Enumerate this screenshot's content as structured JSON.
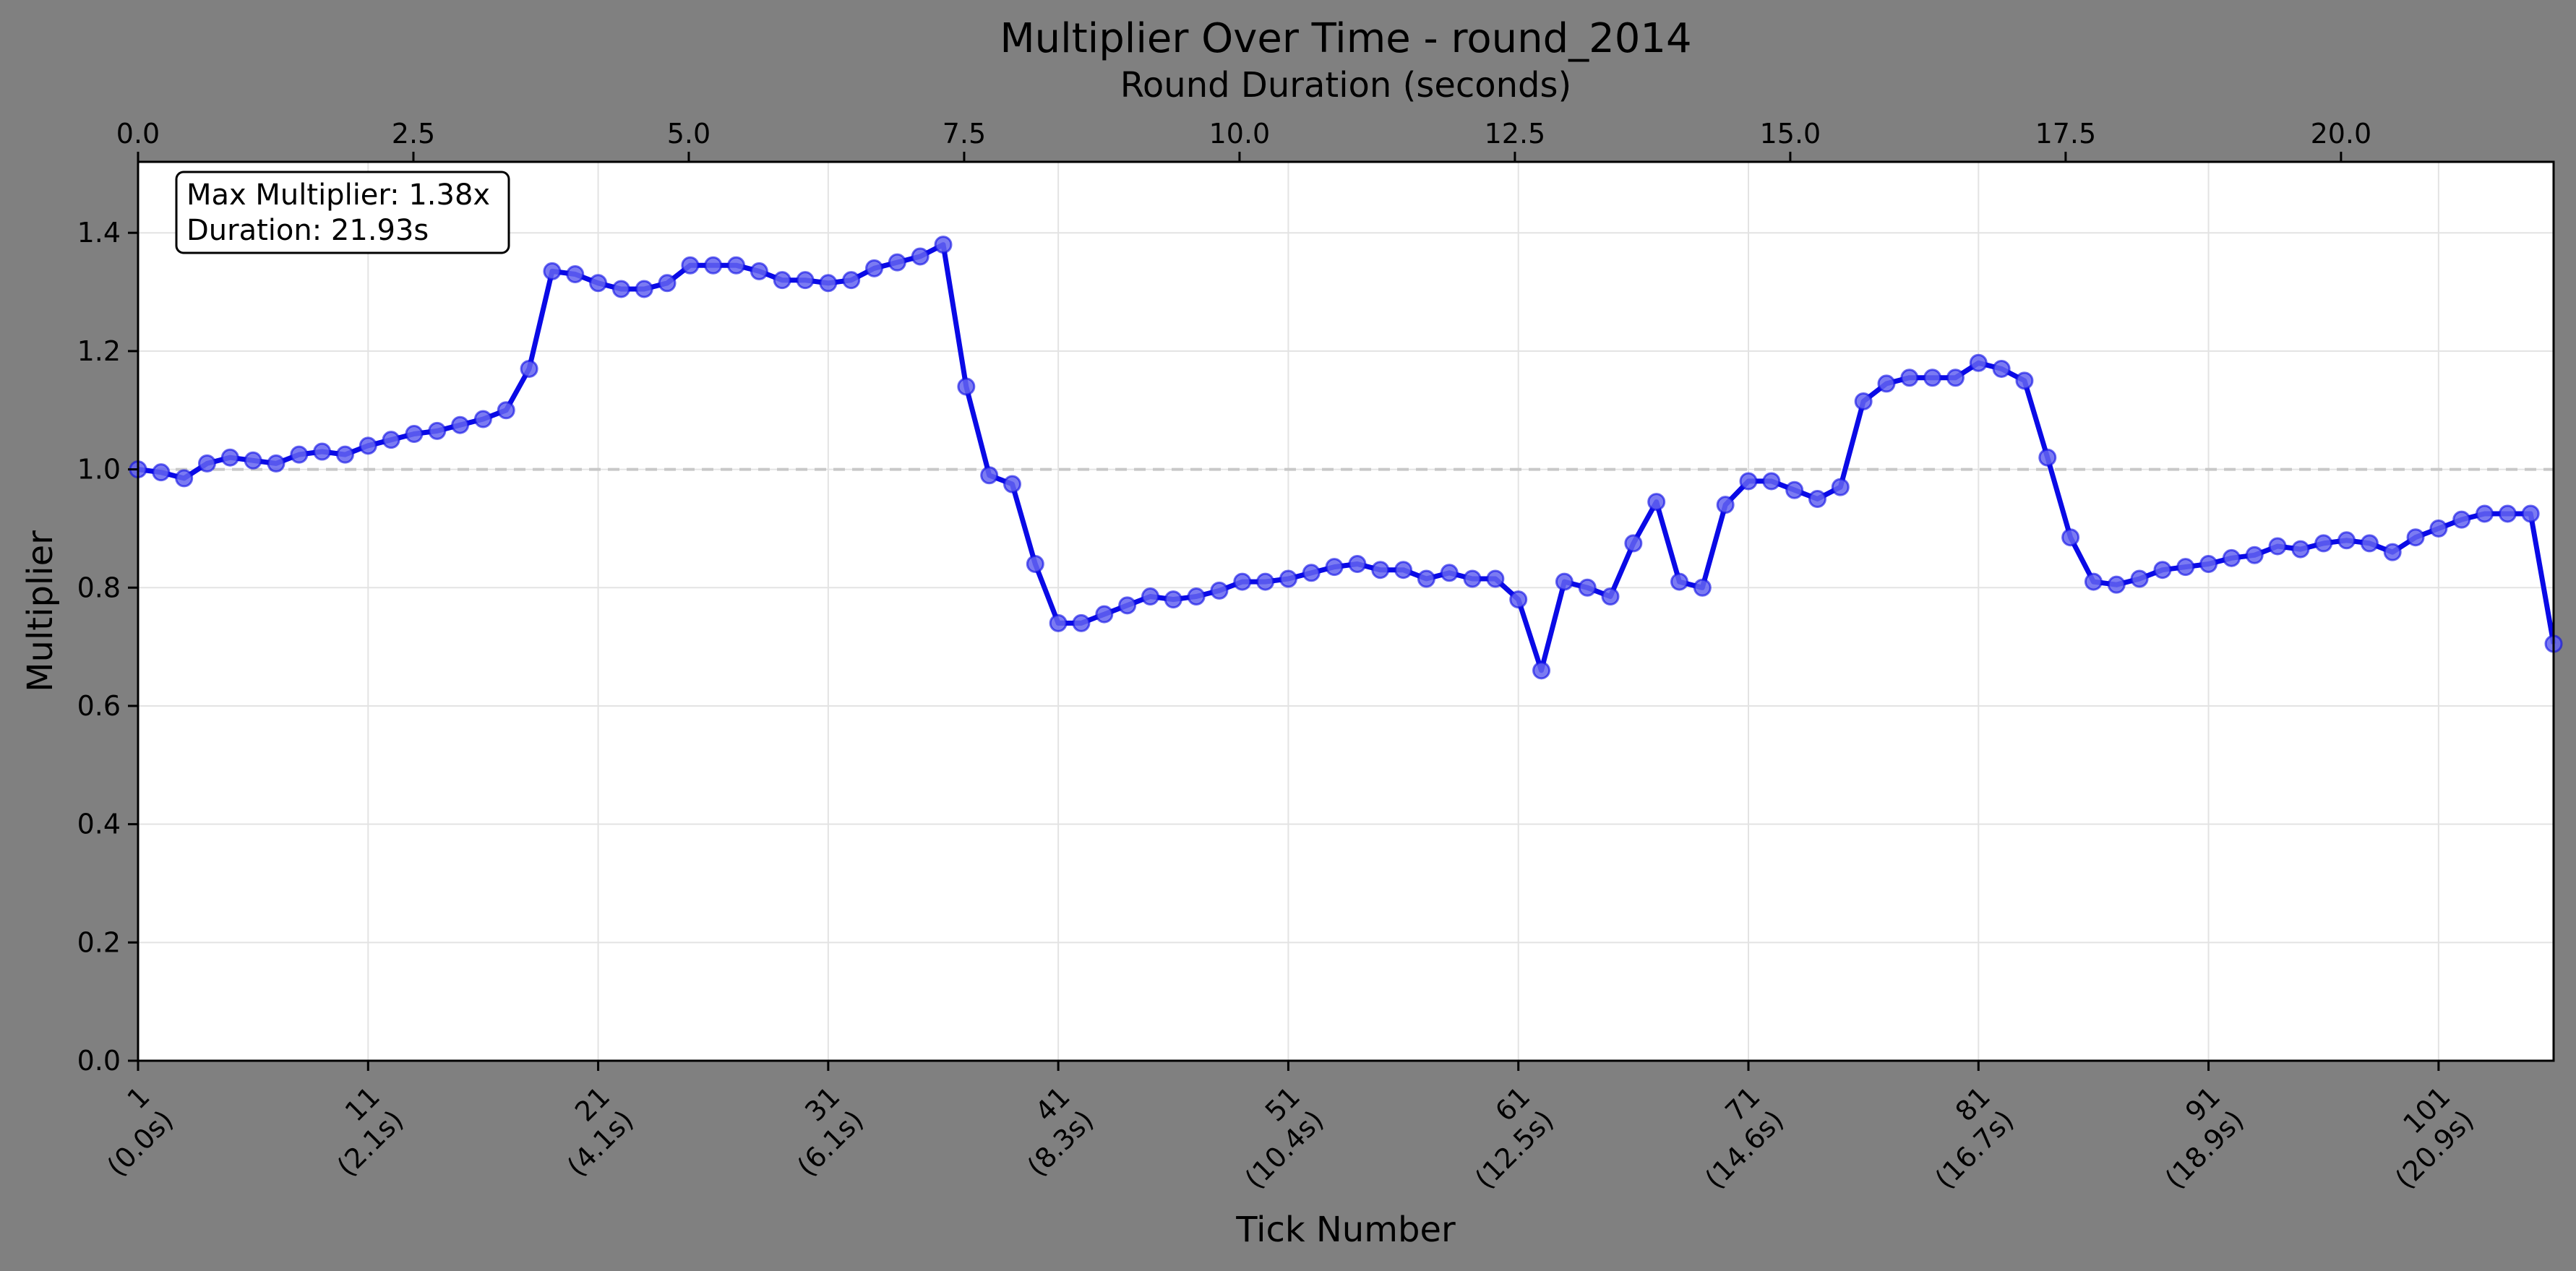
{
  "chart_data": {
    "type": "line",
    "title": "Multiplier Over Time - round_2014",
    "xlabel": "Tick Number",
    "ylabel": "Multiplier",
    "x2label": "Round Duration (seconds)",
    "xlim": [
      1,
      106
    ],
    "ylim": [
      0,
      1.52
    ],
    "x2lim": [
      0,
      21.93
    ],
    "grid": true,
    "yticks": [
      "0.0",
      "0.2",
      "0.4",
      "0.6",
      "0.8",
      "1.0",
      "1.2",
      "1.4"
    ],
    "xticks": [
      {
        "tick": 1,
        "label_top": "1",
        "label_bottom": "(0.0s)"
      },
      {
        "tick": 11,
        "label_top": "11",
        "label_bottom": "(2.1s)"
      },
      {
        "tick": 21,
        "label_top": "21",
        "label_bottom": "(4.1s)"
      },
      {
        "tick": 31,
        "label_top": "31",
        "label_bottom": "(6.1s)"
      },
      {
        "tick": 41,
        "label_top": "41",
        "label_bottom": "(8.3s)"
      },
      {
        "tick": 51,
        "label_top": "51",
        "label_bottom": "(10.4s)"
      },
      {
        "tick": 61,
        "label_top": "61",
        "label_bottom": "(12.5s)"
      },
      {
        "tick": 71,
        "label_top": "71",
        "label_bottom": "(14.6s)"
      },
      {
        "tick": 81,
        "label_top": "81",
        "label_bottom": "(16.7s)"
      },
      {
        "tick": 91,
        "label_top": "91",
        "label_bottom": "(18.9s)"
      },
      {
        "tick": 101,
        "label_top": "101",
        "label_bottom": "(20.9s)"
      }
    ],
    "x2ticks": [
      "0.0",
      "2.5",
      "5.0",
      "7.5",
      "10.0",
      "12.5",
      "15.0",
      "17.5",
      "20.0"
    ],
    "reference_line": {
      "y": 1.0,
      "style": "dashed",
      "color": "#c8c8c8"
    },
    "line_color": "#0a0ae6",
    "marker_color": "#6464f0",
    "annotation": {
      "line1": "Max Multiplier: 1.38x",
      "line2": "Duration: 21.93s"
    },
    "series": [
      {
        "x": [
          1,
          2,
          3,
          4,
          5,
          6,
          7,
          8,
          9,
          10,
          11,
          12,
          13,
          14,
          15,
          16,
          17,
          18,
          19,
          20,
          21,
          22,
          23,
          24,
          25,
          26,
          27,
          28,
          29,
          30,
          31,
          32,
          33,
          34,
          35,
          36,
          37,
          38,
          39,
          40,
          41,
          42,
          43,
          44,
          45,
          46,
          47,
          48,
          49,
          50,
          51,
          52,
          53,
          54,
          55,
          56,
          57,
          58,
          59,
          60,
          61,
          62,
          63,
          64,
          65,
          66,
          67,
          68,
          69,
          70,
          71,
          72,
          73,
          74,
          75,
          76,
          77,
          78,
          79,
          80,
          81,
          82,
          83,
          84,
          85,
          86,
          87,
          88,
          89,
          90,
          91,
          92,
          93,
          94,
          95,
          96,
          97,
          98,
          99,
          100,
          101,
          102,
          103,
          104,
          105,
          106
        ],
        "values": [
          1.0,
          0.995,
          0.985,
          1.01,
          1.02,
          1.015,
          1.01,
          1.025,
          1.03,
          1.025,
          1.04,
          1.05,
          1.06,
          1.065,
          1.075,
          1.085,
          1.1,
          1.17,
          1.335,
          1.33,
          1.315,
          1.305,
          1.305,
          1.315,
          1.345,
          1.345,
          1.345,
          1.335,
          1.32,
          1.32,
          1.315,
          1.32,
          1.34,
          1.35,
          1.36,
          1.38,
          1.14,
          0.99,
          0.975,
          0.84,
          0.74,
          0.74,
          0.755,
          0.77,
          0.785,
          0.78,
          0.785,
          0.795,
          0.81,
          0.81,
          0.815,
          0.825,
          0.835,
          0.84,
          0.83,
          0.83,
          0.815,
          0.825,
          0.815,
          0.815,
          0.78,
          0.66,
          0.81,
          0.8,
          0.785,
          0.875,
          0.945,
          0.81,
          0.8,
          0.94,
          0.98,
          0.98,
          0.965,
          0.95,
          0.97,
          1.115,
          1.145,
          1.155,
          1.155,
          1.155,
          1.18,
          1.17,
          1.15,
          1.02,
          0.885,
          0.81,
          0.805,
          0.815,
          0.83,
          0.835,
          0.84,
          0.85,
          0.855,
          0.87,
          0.865,
          0.875,
          0.88,
          0.875,
          0.86,
          0.885,
          0.9,
          0.915,
          0.925,
          0.925,
          0.925,
          0.705
        ]
      }
    ]
  }
}
